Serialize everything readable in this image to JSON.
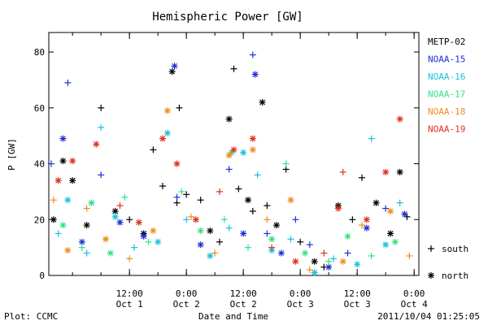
{
  "chart_data": {
    "type": "scatter",
    "title": "Hemispheric Power [GW]",
    "ylabel": "P [GW]",
    "xlabel": "Date and Time",
    "ylim": [
      0,
      87
    ],
    "yticks": [
      0,
      20,
      40,
      60,
      80
    ],
    "xlim": [
      "2011-09-30T19:00",
      "2011-10-04T01:00"
    ],
    "xticks": [
      {
        "t": "2011-10-01T12:00",
        "top": "12:00",
        "bottom": "Oct 1"
      },
      {
        "t": "2011-10-02T00:00",
        "top": "0:00",
        "bottom": "Oct 2"
      },
      {
        "t": "2011-10-02T12:00",
        "top": "12:00",
        "bottom": "Oct 2"
      },
      {
        "t": "2011-10-03T00:00",
        "top": "0:00",
        "bottom": "Oct 3"
      },
      {
        "t": "2011-10-03T12:00",
        "top": "12:00",
        "bottom": "Oct 3"
      },
      {
        "t": "2011-10-04T00:00",
        "top": "0:00",
        "bottom": "Oct 4"
      }
    ],
    "grid": false,
    "legend_placement": "right",
    "symbol_legend": [
      {
        "symbol": "+",
        "label": "south"
      },
      {
        "symbol": "*",
        "label": "north"
      }
    ],
    "series": [
      {
        "name": "METP-02",
        "color": "#000000",
        "points": [
          [
            "2011-09-30T20:00",
            20,
            "n"
          ],
          [
            "2011-09-30T22:00",
            41,
            "n"
          ],
          [
            "2011-10-01T00:00",
            34,
            "n"
          ],
          [
            "2011-10-01T03:00",
            18,
            "n"
          ],
          [
            "2011-10-01T06:00",
            60,
            "s"
          ],
          [
            "2011-10-01T09:00",
            23,
            "n"
          ],
          [
            "2011-10-01T12:00",
            20,
            "s"
          ],
          [
            "2011-10-01T15:00",
            15,
            "n"
          ],
          [
            "2011-10-01T17:00",
            45,
            "s"
          ],
          [
            "2011-10-01T19:00",
            32,
            "s"
          ],
          [
            "2011-10-01T22:00",
            26,
            "s"
          ],
          [
            "2011-10-02T00:00",
            29,
            "s"
          ],
          [
            "2011-10-01T21:00",
            73,
            "n"
          ],
          [
            "2011-10-01T22:30",
            60,
            "s"
          ],
          [
            "2011-10-02T03:00",
            27,
            "s"
          ],
          [
            "2011-10-02T05:00",
            16,
            "n"
          ],
          [
            "2011-10-02T07:00",
            12,
            "s"
          ],
          [
            "2011-10-02T09:00",
            56,
            "n"
          ],
          [
            "2011-10-02T10:00",
            74,
            "s"
          ],
          [
            "2011-10-02T11:00",
            31,
            "s"
          ],
          [
            "2011-10-02T13:00",
            27,
            "n"
          ],
          [
            "2011-10-02T14:00",
            23,
            "s"
          ],
          [
            "2011-10-02T16:00",
            62,
            "n"
          ],
          [
            "2011-10-02T17:00",
            25,
            "s"
          ],
          [
            "2011-10-02T19:00",
            18,
            "n"
          ],
          [
            "2011-10-02T21:00",
            38,
            "s"
          ],
          [
            "2011-10-03T00:00",
            12,
            "s"
          ],
          [
            "2011-10-03T03:00",
            5,
            "n"
          ],
          [
            "2011-10-03T05:00",
            3,
            "s"
          ],
          [
            "2011-10-03T08:00",
            25,
            "n"
          ],
          [
            "2011-10-03T11:00",
            20,
            "s"
          ],
          [
            "2011-10-03T13:00",
            35,
            "s"
          ],
          [
            "2011-10-03T16:00",
            26,
            "n"
          ],
          [
            "2011-10-03T19:00",
            15,
            "n"
          ],
          [
            "2011-10-03T21:00",
            37,
            "n"
          ],
          [
            "2011-10-03T22:30",
            21,
            "s"
          ]
        ]
      },
      {
        "name": "NOAA-15",
        "color": "#1f2fd6",
        "points": [
          [
            "2011-09-30T19:30",
            40,
            "s"
          ],
          [
            "2011-09-30T22:00",
            49,
            "n"
          ],
          [
            "2011-09-30T23:00",
            69,
            "s"
          ],
          [
            "2011-10-01T02:00",
            12,
            "n"
          ],
          [
            "2011-10-01T06:00",
            36,
            "s"
          ],
          [
            "2011-10-01T10:00",
            19,
            "n"
          ],
          [
            "2011-10-01T15:00",
            14,
            "n"
          ],
          [
            "2011-10-01T21:30",
            75,
            "n"
          ],
          [
            "2011-10-01T22:00",
            28,
            "s"
          ],
          [
            "2011-10-02T03:00",
            11,
            "n"
          ],
          [
            "2011-10-02T09:00",
            38,
            "s"
          ],
          [
            "2011-10-02T12:00",
            15,
            "n"
          ],
          [
            "2011-10-02T14:00",
            79,
            "s"
          ],
          [
            "2011-10-02T14:30",
            72,
            "n"
          ],
          [
            "2011-10-02T17:00",
            15,
            "s"
          ],
          [
            "2011-10-02T20:00",
            8,
            "n"
          ],
          [
            "2011-10-02T23:00",
            20,
            "s"
          ],
          [
            "2011-10-03T02:00",
            11,
            "s"
          ],
          [
            "2011-10-03T06:00",
            3,
            "n"
          ],
          [
            "2011-10-03T10:00",
            8,
            "s"
          ],
          [
            "2011-10-03T14:00",
            17,
            "n"
          ],
          [
            "2011-10-03T18:00",
            24,
            "s"
          ],
          [
            "2011-10-03T22:00",
            22,
            "n"
          ]
        ]
      },
      {
        "name": "NOAA-16",
        "color": "#18c0de",
        "points": [
          [
            "2011-09-30T21:00",
            15,
            "s"
          ],
          [
            "2011-09-30T23:00",
            27,
            "n"
          ],
          [
            "2011-10-01T03:00",
            8,
            "s"
          ],
          [
            "2011-10-01T06:00",
            53,
            "s"
          ],
          [
            "2011-10-01T09:00",
            21,
            "n"
          ],
          [
            "2011-10-01T13:00",
            10,
            "s"
          ],
          [
            "2011-10-01T18:00",
            12,
            "n"
          ],
          [
            "2011-10-01T20:00",
            51,
            "n"
          ],
          [
            "2011-10-02T00:00",
            20,
            "s"
          ],
          [
            "2011-10-02T05:00",
            7,
            "n"
          ],
          [
            "2011-10-02T09:00",
            17,
            "s"
          ],
          [
            "2011-10-02T12:00",
            44,
            "n"
          ],
          [
            "2011-10-02T15:00",
            36,
            "s"
          ],
          [
            "2011-10-02T18:00",
            9,
            "n"
          ],
          [
            "2011-10-02T22:00",
            13,
            "s"
          ],
          [
            "2011-10-03T03:00",
            1,
            "n"
          ],
          [
            "2011-10-03T07:00",
            6,
            "s"
          ],
          [
            "2011-10-03T12:00",
            4,
            "n"
          ],
          [
            "2011-10-03T15:00",
            49,
            "s"
          ],
          [
            "2011-10-03T18:00",
            11,
            "n"
          ],
          [
            "2011-10-03T21:00",
            26,
            "s"
          ]
        ]
      },
      {
        "name": "NOAA-17",
        "color": "#33e082",
        "points": [
          [
            "2011-09-30T22:00",
            18,
            "n"
          ],
          [
            "2011-10-01T02:00",
            10,
            "s"
          ],
          [
            "2011-10-01T04:00",
            26,
            "n"
          ],
          [
            "2011-10-01T08:00",
            8,
            "n"
          ],
          [
            "2011-10-01T11:00",
            28,
            "s"
          ],
          [
            "2011-10-01T16:00",
            12,
            "s"
          ],
          [
            "2011-10-01T23:00",
            30,
            "s"
          ],
          [
            "2011-10-02T03:00",
            16,
            "n"
          ],
          [
            "2011-10-02T08:00",
            20,
            "s"
          ],
          [
            "2011-10-02T09:30",
            44,
            "n"
          ],
          [
            "2011-10-02T13:00",
            10,
            "s"
          ],
          [
            "2011-10-02T18:00",
            13,
            "n"
          ],
          [
            "2011-10-02T21:00",
            40,
            "s"
          ],
          [
            "2011-10-03T01:00",
            8,
            "n"
          ],
          [
            "2011-10-03T06:00",
            5,
            "s"
          ],
          [
            "2011-10-03T10:00",
            14,
            "n"
          ],
          [
            "2011-10-03T15:00",
            7,
            "s"
          ],
          [
            "2011-10-03T20:00",
            12,
            "n"
          ]
        ]
      },
      {
        "name": "NOAA-18",
        "color": "#f08c1e",
        "points": [
          [
            "2011-09-30T20:00",
            27,
            "s"
          ],
          [
            "2011-09-30T23:00",
            9,
            "n"
          ],
          [
            "2011-10-01T03:00",
            24,
            "s"
          ],
          [
            "2011-10-01T07:00",
            13,
            "n"
          ],
          [
            "2011-10-01T12:00",
            6,
            "s"
          ],
          [
            "2011-10-01T17:00",
            16,
            "n"
          ],
          [
            "2011-10-01T20:00",
            59,
            "n"
          ],
          [
            "2011-10-02T01:00",
            21,
            "s"
          ],
          [
            "2011-10-02T06:00",
            8,
            "s"
          ],
          [
            "2011-10-02T09:00",
            43,
            "n"
          ],
          [
            "2011-10-02T14:00",
            45,
            "n"
          ],
          [
            "2011-10-02T17:00",
            20,
            "s"
          ],
          [
            "2011-10-02T22:00",
            27,
            "n"
          ],
          [
            "2011-10-03T02:00",
            2,
            "s"
          ],
          [
            "2011-10-03T09:00",
            5,
            "n"
          ],
          [
            "2011-10-03T13:00",
            18,
            "s"
          ],
          [
            "2011-10-03T19:00",
            23,
            "n"
          ],
          [
            "2011-10-03T23:00",
            7,
            "s"
          ]
        ]
      },
      {
        "name": "NOAA-19",
        "color": "#e02f1e",
        "points": [
          [
            "2011-09-30T21:00",
            34,
            "n"
          ],
          [
            "2011-10-01T00:00",
            41,
            "n"
          ],
          [
            "2011-10-01T05:00",
            47,
            "n"
          ],
          [
            "2011-10-01T10:00",
            25,
            "s"
          ],
          [
            "2011-10-01T14:00",
            19,
            "n"
          ],
          [
            "2011-10-01T19:00",
            49,
            "n"
          ],
          [
            "2011-10-01T22:00",
            40,
            "n"
          ],
          [
            "2011-10-02T02:00",
            20,
            "n"
          ],
          [
            "2011-10-02T07:00",
            30,
            "s"
          ],
          [
            "2011-10-02T10:00",
            45,
            "n"
          ],
          [
            "2011-10-02T14:00",
            49,
            "n"
          ],
          [
            "2011-10-02T18:00",
            10,
            "s"
          ],
          [
            "2011-10-02T23:00",
            5,
            "n"
          ],
          [
            "2011-10-03T05:00",
            8,
            "s"
          ],
          [
            "2011-10-03T08:00",
            24,
            "n"
          ],
          [
            "2011-10-03T09:00",
            37,
            "s"
          ],
          [
            "2011-10-03T14:00",
            20,
            "n"
          ],
          [
            "2011-10-03T18:00",
            37,
            "n"
          ],
          [
            "2011-10-03T21:00",
            56,
            "n"
          ]
        ]
      }
    ]
  },
  "footer": {
    "plot_label": "Plot: CCMC",
    "timestamp": "2011/10/04 01:25:05"
  }
}
